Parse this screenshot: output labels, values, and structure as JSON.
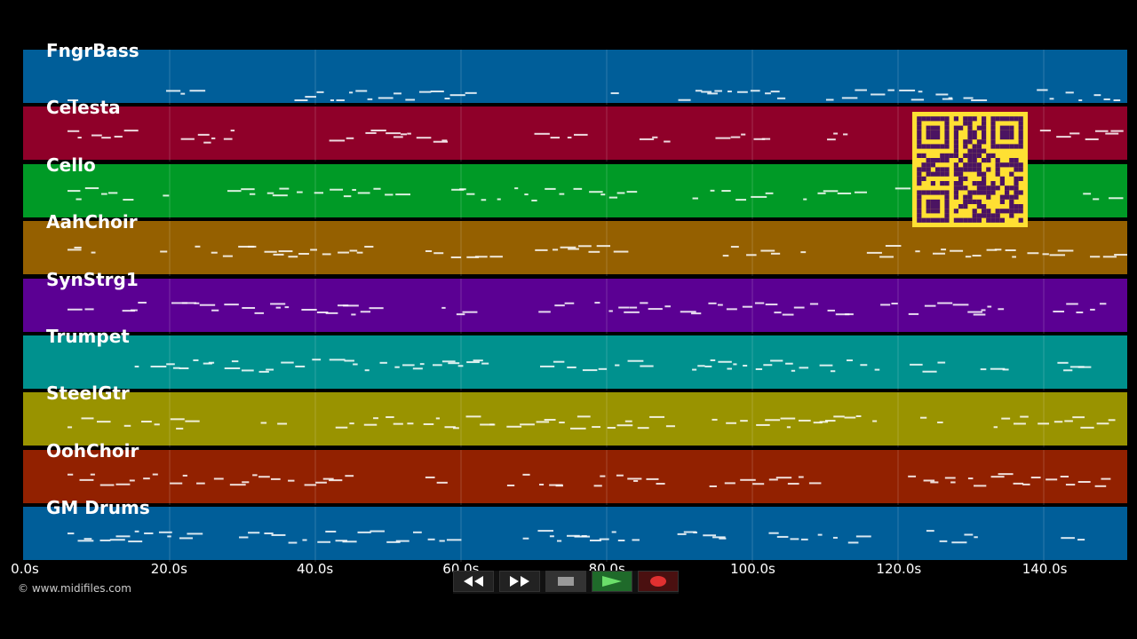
{
  "tracks": [
    {
      "name": "FngrBass",
      "color": "#005e99"
    },
    {
      "name": "Celesta",
      "color": "#8f0029"
    },
    {
      "name": "Cello",
      "color": "#009a26"
    },
    {
      "name": "AahChoir",
      "color": "#956000"
    },
    {
      "name": "SynStrg1",
      "color": "#5b0093"
    },
    {
      "name": "Trumpet",
      "color": "#00918e"
    },
    {
      "name": "SteelGtr",
      "color": "#999300"
    },
    {
      "name": "OohChoir",
      "color": "#922100"
    },
    {
      "name": "GM Drums",
      "color": "#005e99"
    }
  ],
  "timeline": {
    "ticks": [
      "0.0s",
      "20.0s",
      "40.0s",
      "60.0s",
      "80.0s",
      "100.0s",
      "120.0s",
      "140.0s"
    ]
  },
  "copyright": "© www.midifiles.com",
  "transport": {
    "rewind_icon": "rewind-icon",
    "fast_forward_icon": "fast-forward-icon",
    "stop_icon": "stop-icon",
    "play_icon": "play-icon",
    "record_icon": "record-icon"
  },
  "qr_colors": {
    "fg": "#4b1462",
    "bg": "#ffe033"
  }
}
